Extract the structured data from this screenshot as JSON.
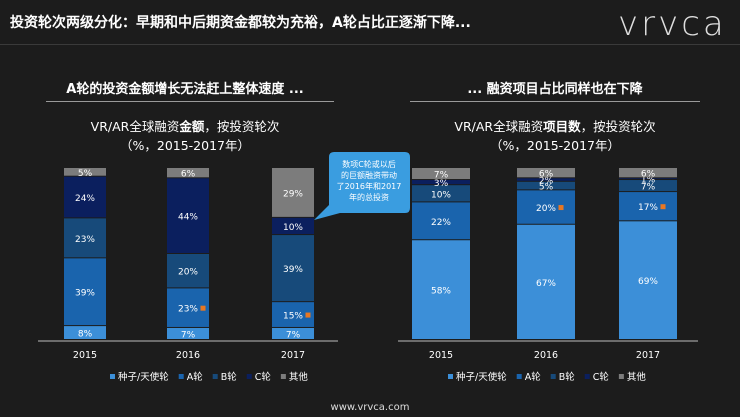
{
  "slide_title": "投资轮次两级分化：早期和中后期资金都较为充裕，A轮占比正逐渐下降...",
  "logo": "vrvca",
  "footer_url": "www.vrvca.com",
  "colors": {
    "seed": "#3c8fd8",
    "a_round": "#1a64ad",
    "b_round": "#174a7a",
    "c_round": "#0b1f5e",
    "other": "#7c7c7c",
    "marker": "#e87722",
    "callout": "#3a9de0"
  },
  "chart_data": [
    {
      "type": "bar",
      "stacked": true,
      "heading": "A轮的投资金额增长无法赶上整体速度 ...",
      "subtitle_parts": [
        "VR/AR全球融资",
        "金额",
        "，按投资轮次"
      ],
      "subtitle_line2": "（%，2015-2017年）",
      "categories": [
        "2015",
        "2016",
        "2017"
      ],
      "ylim": [
        0,
        100
      ],
      "series": [
        {
          "name": "种子/天使轮",
          "values": [
            8,
            7,
            7
          ]
        },
        {
          "name": "A轮",
          "values": [
            39,
            23,
            15
          ]
        },
        {
          "name": "B轮",
          "values": [
            23,
            20,
            39
          ]
        },
        {
          "name": "C轮",
          "values": [
            24,
            44,
            10
          ]
        },
        {
          "name": "其他",
          "values": [
            5,
            6,
            29
          ]
        }
      ],
      "highlight": {
        "series": "A轮",
        "categories": [
          "2016",
          "2017"
        ]
      },
      "callout": "数项C轮或以后的巨额融资带动了2016年和2017年的总投资",
      "legend": "bottom"
    },
    {
      "type": "bar",
      "stacked": true,
      "heading": "... 融资项目占比同样也在下降",
      "subtitle_parts": [
        "VR/AR全球融资",
        "项目数",
        "，按投资轮次"
      ],
      "subtitle_line2": "（%，2015-2017年）",
      "categories": [
        "2015",
        "2016",
        "2017"
      ],
      "ylim": [
        0,
        100
      ],
      "series": [
        {
          "name": "种子/天使轮",
          "values": [
            58,
            67,
            69
          ]
        },
        {
          "name": "A轮",
          "values": [
            22,
            20,
            17
          ]
        },
        {
          "name": "B轮",
          "values": [
            10,
            5,
            7
          ]
        },
        {
          "name": "C轮",
          "values": [
            3,
            2,
            1
          ]
        },
        {
          "name": "其他",
          "values": [
            7,
            6,
            6
          ]
        }
      ],
      "highlight": {
        "series": "A轮",
        "categories": [
          "2016",
          "2017"
        ]
      },
      "legend": "bottom"
    }
  ]
}
